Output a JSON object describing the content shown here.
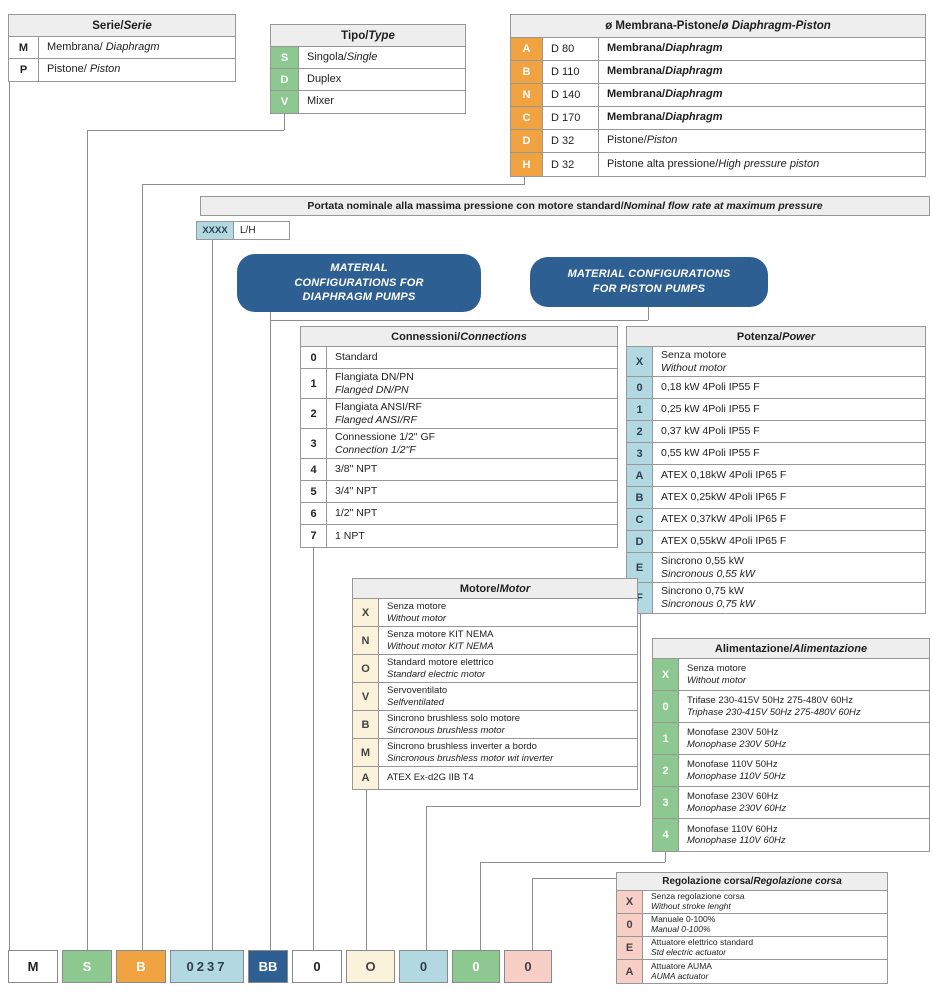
{
  "colors": {
    "orange": "#F2A341",
    "green": "#8CC88F",
    "lightblue": "#B2D9E2",
    "navy": "#2D5F92",
    "cream": "#FAF2DA",
    "pink": "#F8CFC6",
    "header_gray": "#EFEEEE",
    "border_gray": "#979797",
    "line_gray": "#8D8D8D"
  },
  "portata": {
    "n": "Portata nominale alla massima pressione con motore standard/ ",
    "i": "Nominal flow rate at maximum pressure"
  },
  "xxxx": {
    "code": "XXXX",
    "desc": "L/H"
  },
  "material_boxes": {
    "diaphragm": [
      "MATERIAL",
      "CONFIGURATIONS FOR",
      "DIAPHRAGM PUMPS"
    ],
    "piston": [
      "MATERIAL CONFIGURATIONS",
      "FOR PISTON PUMPS"
    ]
  },
  "tables": {
    "serie": {
      "title": {
        "n": "Serie/",
        "i": "Serie"
      },
      "code_color": "white",
      "rows": [
        {
          "code": "M",
          "lines": [
            {
              "n": "Membrana/ ",
              "i": "Diaphragm"
            }
          ]
        },
        {
          "code": "P",
          "lines": [
            {
              "n": "Pistone/ ",
              "i": "Piston"
            }
          ]
        }
      ]
    },
    "tipo": {
      "title": {
        "n": "Tipo/",
        "i": "Type"
      },
      "code_color": "green",
      "rows": [
        {
          "code": "S",
          "lines": [
            {
              "n": "Singola/",
              "i": "Single"
            }
          ]
        },
        {
          "code": "D",
          "lines": [
            {
              "n": "Duplex"
            }
          ]
        },
        {
          "code": "V",
          "lines": [
            {
              "n": "Mixer"
            }
          ]
        }
      ]
    },
    "membrana": {
      "title": {
        "n": "ø Membrana-Pistone/",
        "i": "ø Diaphragm-Piston"
      },
      "code_color": "orange",
      "rows": [
        {
          "code": "A",
          "size": "D 80",
          "lines": [
            {
              "n": "Membrana/",
              "i": "Diaphragm",
              "b": true
            }
          ]
        },
        {
          "code": "B",
          "size": "D 110",
          "lines": [
            {
              "n": "Membrana/",
              "i": "Diaphragm",
              "b": true
            }
          ]
        },
        {
          "code": "N",
          "size": "D 140",
          "lines": [
            {
              "n": "Membrana/",
              "i": "Diaphragm",
              "b": true
            }
          ]
        },
        {
          "code": "C",
          "size": "D 170",
          "lines": [
            {
              "n": "Membrana/",
              "i": "Diaphragm",
              "b": true
            }
          ]
        },
        {
          "code": "D",
          "size": "D 32",
          "lines": [
            {
              "n": "Pistone/",
              "i": "Piston"
            }
          ]
        },
        {
          "code": "H",
          "size": "D 32",
          "lines": [
            {
              "n": "Pistone alta pressione/",
              "i": "High pressure piston"
            }
          ]
        }
      ]
    },
    "connessioni": {
      "title": {
        "n": "Connessioni/",
        "i": "Connections"
      },
      "code_color": "white",
      "rows": [
        {
          "code": "0",
          "lines": [
            {
              "n": "Standard"
            }
          ]
        },
        {
          "code": "1",
          "lines": [
            {
              "n": "Flangiata DN/PN"
            },
            {
              "i": "Flanged DN/PN"
            }
          ]
        },
        {
          "code": "2",
          "lines": [
            {
              "n": "Flangiata ANSI/RF"
            },
            {
              "i": "Flanged ANSI/RF"
            }
          ]
        },
        {
          "code": "3",
          "lines": [
            {
              "n": "Connessione 1/2\" GF"
            },
            {
              "i": "Connection 1/2\"F"
            }
          ]
        },
        {
          "code": "4",
          "lines": [
            {
              "n": "3/8\" NPT"
            }
          ]
        },
        {
          "code": "5",
          "lines": [
            {
              "n": "3/4\" NPT"
            }
          ]
        },
        {
          "code": "6",
          "lines": [
            {
              "n": "1/2\" NPT"
            }
          ]
        },
        {
          "code": "7",
          "lines": [
            {
              "n": "1 NPT"
            }
          ]
        }
      ]
    },
    "potenza": {
      "title": {
        "n": "Potenza/",
        "i": "Power"
      },
      "code_color": "lightblue",
      "rows": [
        {
          "code": "X",
          "lines": [
            {
              "n": "Senza motore"
            },
            {
              "i": "Without motor"
            }
          ]
        },
        {
          "code": "0",
          "lines": [
            {
              "n": "0,18 kW 4Poli IP55 F"
            }
          ]
        },
        {
          "code": "1",
          "lines": [
            {
              "n": "0,25 kW 4Poli IP55 F"
            }
          ]
        },
        {
          "code": "2",
          "lines": [
            {
              "n": "0,37 kW 4Poli IP55 F"
            }
          ]
        },
        {
          "code": "3",
          "lines": [
            {
              "n": "0,55 kW 4Poli IP55 F"
            }
          ]
        },
        {
          "code": "A",
          "lines": [
            {
              "n": "ATEX 0,18kW 4Poli IP65 F"
            }
          ]
        },
        {
          "code": "B",
          "lines": [
            {
              "n": "ATEX 0,25kW 4Poli IP65 F"
            }
          ]
        },
        {
          "code": "C",
          "lines": [
            {
              "n": "ATEX 0,37kW 4Poli IP65 F"
            }
          ]
        },
        {
          "code": "D",
          "lines": [
            {
              "n": "ATEX 0,55kW 4Poli IP65 F"
            }
          ]
        },
        {
          "code": "E",
          "lines": [
            {
              "n": "Sincrono 0,55 kW"
            },
            {
              "i": "Sincronous 0,55 kW"
            }
          ]
        },
        {
          "code": "F",
          "lines": [
            {
              "n": "Sincrono 0,75 kW"
            },
            {
              "i": "Sincronous 0,75 kW"
            }
          ]
        }
      ]
    },
    "motore": {
      "title": {
        "n": "Motore/",
        "i": "Motor"
      },
      "code_color": "cream",
      "rows": [
        {
          "code": "X",
          "lines": [
            {
              "n": "Senza motore"
            },
            {
              "i": "Without motor"
            }
          ]
        },
        {
          "code": "N",
          "lines": [
            {
              "n": "Senza motore KIT NEMA"
            },
            {
              "i": "Without motor KIT NEMA"
            }
          ]
        },
        {
          "code": "O",
          "lines": [
            {
              "n": "Standard motore elettrico"
            },
            {
              "i": "Standard electric motor"
            }
          ]
        },
        {
          "code": "V",
          "lines": [
            {
              "n": "Servoventilato"
            },
            {
              "i": "Selfventilated"
            }
          ]
        },
        {
          "code": "B",
          "lines": [
            {
              "n": "Sincrono brushless solo motore"
            },
            {
              "i": "Sincronous brushless motor"
            }
          ]
        },
        {
          "code": "M",
          "lines": [
            {
              "n": "Sincrono brushless inverter a bordo"
            },
            {
              "i": "Sincronous brushless motor wit inverter"
            }
          ]
        },
        {
          "code": "A",
          "lines": [
            {
              "n": "ATEX Ex-d2G IIB T4"
            }
          ]
        }
      ]
    },
    "alimentazione": {
      "title": {
        "n": "Alimentazione/",
        "i": "Alimentazione"
      },
      "code_color": "green",
      "rows": [
        {
          "code": "X",
          "lines": [
            {
              "n": "Senza motore"
            },
            {
              "i": "Without motor"
            }
          ]
        },
        {
          "code": "0",
          "lines": [
            {
              "n": "Trifase 230-415V 50Hz 275-480V 60Hz"
            },
            {
              "i": "Triphase 230-415V 50Hz 275-480V 60Hz"
            }
          ]
        },
        {
          "code": "1",
          "lines": [
            {
              "n": "Monofase 230V 50Hz"
            },
            {
              "i": "Monophase 230V 50Hz"
            }
          ]
        },
        {
          "code": "2",
          "lines": [
            {
              "n": "Monofase 110V 50Hz"
            },
            {
              "i": "Monophase 110V 50Hz"
            }
          ]
        },
        {
          "code": "3",
          "lines": [
            {
              "n": "Monofase 230V 60Hz"
            },
            {
              "i": "Monophase 230V 60Hz"
            }
          ]
        },
        {
          "code": "4",
          "lines": [
            {
              "n": "Monofase 110V 60Hz"
            },
            {
              "i": "Monophase 110V 60Hz"
            }
          ]
        }
      ]
    },
    "regolazione": {
      "title": {
        "n": "Regolazione corsa/",
        "i": "Regolazione corsa"
      },
      "code_color": "pink",
      "rows": [
        {
          "code": "X",
          "lines": [
            {
              "n": "Senza regolazione corsa"
            },
            {
              "i": "Without stroke lenght"
            }
          ]
        },
        {
          "code": "0",
          "lines": [
            {
              "n": "Manuale 0-100%"
            },
            {
              "i": "Manual 0-100%"
            }
          ]
        },
        {
          "code": "E",
          "lines": [
            {
              "n": "Attuatore elettrico standard"
            },
            {
              "i": "Std electric actuator"
            }
          ]
        },
        {
          "code": "A",
          "lines": [
            {
              "n": "Attuatore AUMA"
            },
            {
              "i": "AUMA actuator"
            }
          ]
        }
      ]
    }
  },
  "bottom_row": [
    {
      "code": "M",
      "color": "white"
    },
    {
      "code": "S",
      "color": "green"
    },
    {
      "code": "B",
      "color": "orange"
    },
    {
      "code": "0237",
      "color": "lightblue"
    },
    {
      "code": "BB",
      "color": "navy"
    },
    {
      "code": "0",
      "color": "white"
    },
    {
      "code": "O",
      "color": "cream"
    },
    {
      "code": "0",
      "color": "lightblue"
    },
    {
      "code": "0",
      "color": "green"
    },
    {
      "code": "0",
      "color": "pink"
    }
  ]
}
